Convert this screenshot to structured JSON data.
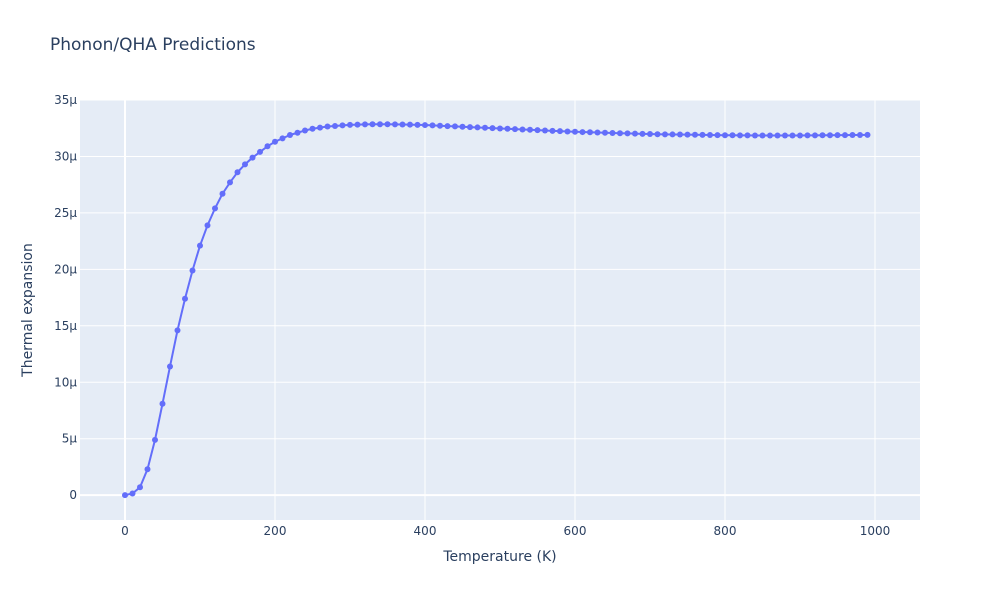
{
  "chart_data": {
    "type": "line",
    "title": "Phonon/QHA Predictions",
    "xlabel": "Temperature (K)",
    "ylabel": "Thermal expansion",
    "xlim": [
      -60,
      1060
    ],
    "ylim": [
      -2.2,
      35
    ],
    "x_ticks": [
      0,
      200,
      400,
      600,
      800,
      1000
    ],
    "x_tick_labels": [
      "0",
      "200",
      "400",
      "600",
      "800",
      "1000"
    ],
    "y_ticks": [
      0,
      5,
      10,
      15,
      20,
      25,
      30,
      35
    ],
    "y_tick_labels": [
      "0",
      "5μ",
      "10μ",
      "15μ",
      "20μ",
      "25μ",
      "30μ",
      "35μ"
    ],
    "y_unit": "μ",
    "grid": true,
    "background_color": "#e5ecf6",
    "series_color": "#636efa",
    "series": [
      {
        "x": [
          0,
          10,
          20,
          30,
          40,
          50,
          60,
          70,
          80,
          90,
          100,
          110,
          120,
          130,
          140,
          150,
          160,
          170,
          180,
          190,
          200,
          210,
          220,
          230,
          240,
          250,
          260,
          270,
          280,
          290,
          300,
          310,
          320,
          330,
          340,
          350,
          360,
          370,
          380,
          390,
          400,
          410,
          420,
          430,
          440,
          450,
          460,
          470,
          480,
          490,
          500,
          510,
          520,
          530,
          540,
          550,
          560,
          570,
          580,
          590,
          600,
          610,
          620,
          630,
          640,
          650,
          660,
          670,
          680,
          690,
          700,
          710,
          720,
          730,
          740,
          750,
          760,
          770,
          780,
          790,
          800,
          810,
          820,
          830,
          840,
          850,
          860,
          870,
          880,
          890,
          900,
          910,
          920,
          930,
          940,
          950,
          960,
          970,
          980,
          990
        ],
        "y": [
          0.0,
          0.15,
          0.7,
          2.3,
          4.9,
          8.1,
          11.4,
          14.6,
          17.4,
          19.9,
          22.1,
          23.9,
          25.4,
          26.7,
          27.7,
          28.6,
          29.3,
          29.9,
          30.4,
          30.9,
          31.3,
          31.6,
          31.9,
          32.1,
          32.3,
          32.45,
          32.55,
          32.65,
          32.7,
          32.75,
          32.8,
          32.82,
          32.84,
          32.85,
          32.85,
          32.85,
          32.84,
          32.83,
          32.82,
          32.8,
          32.78,
          32.75,
          32.72,
          32.69,
          32.66,
          32.63,
          32.6,
          32.57,
          32.54,
          32.51,
          32.48,
          32.45,
          32.42,
          32.39,
          32.36,
          32.33,
          32.3,
          32.27,
          32.24,
          32.21,
          32.19,
          32.16,
          32.14,
          32.12,
          32.1,
          32.08,
          32.06,
          32.04,
          32.02,
          32.0,
          31.99,
          31.97,
          31.96,
          31.95,
          31.94,
          31.93,
          31.92,
          31.91,
          31.9,
          31.89,
          31.88,
          31.88,
          31.87,
          31.87,
          31.86,
          31.86,
          31.86,
          31.86,
          31.86,
          31.86,
          31.86,
          31.87,
          31.87,
          31.88,
          31.88,
          31.89,
          31.89,
          31.9,
          31.9,
          31.91
        ]
      }
    ]
  }
}
